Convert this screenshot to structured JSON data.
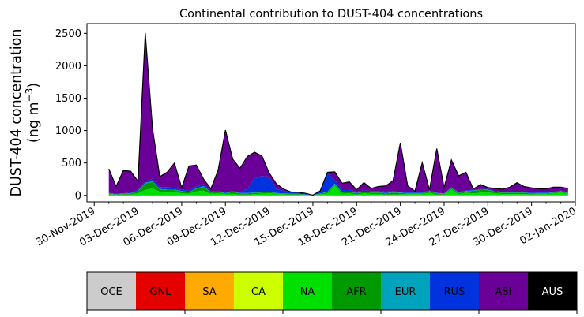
{
  "chart_data": {
    "type": "area",
    "stacked": true,
    "title": "Continental contribution to DUST-404 concentrations",
    "ylabel_line1": "DUST-404 concentration",
    "ylabel_line2_prefix": "(ng m",
    "ylabel_line2_sup": "−3",
    "ylabel_line2_suffix": ")",
    "xlabel": "",
    "ylim": [
      -100,
      2650
    ],
    "xlim_days": [
      -0.5,
      33.0
    ],
    "yticks": [
      0,
      500,
      1000,
      1500,
      2000,
      2500
    ],
    "xticks": [
      {
        "day": 0,
        "label": "30-Nov-2019"
      },
      {
        "day": 3,
        "label": "03-Dec-2019"
      },
      {
        "day": 6,
        "label": "06-Dec-2019"
      },
      {
        "day": 9,
        "label": "09-Dec-2019"
      },
      {
        "day": 12,
        "label": "12-Dec-2019"
      },
      {
        "day": 15,
        "label": "15-Dec-2019"
      },
      {
        "day": 18,
        "label": "18-Dec-2019"
      },
      {
        "day": 21,
        "label": "21-Dec-2019"
      },
      {
        "day": 24,
        "label": "24-Dec-2019"
      },
      {
        "day": 27,
        "label": "27-Dec-2019"
      },
      {
        "day": 30,
        "label": "30-Dec-2019"
      },
      {
        "day": 33,
        "label": "02-Jan-2020"
      }
    ],
    "x": [
      1.0,
      1.5,
      2.0,
      2.5,
      3.0,
      3.5,
      4.0,
      4.5,
      5.0,
      5.5,
      6.0,
      6.5,
      7.0,
      7.5,
      8.0,
      8.5,
      9.0,
      9.5,
      10.0,
      10.5,
      11.0,
      11.5,
      12.0,
      12.5,
      13.0,
      13.5,
      14.0,
      14.5,
      15.0,
      15.5,
      16.0,
      16.5,
      17.0,
      17.5,
      18.0,
      18.5,
      19.0,
      19.5,
      20.0,
      20.5,
      21.0,
      21.5,
      22.0,
      22.5,
      23.0,
      23.5,
      24.0,
      24.5,
      25.0,
      25.5,
      26.0,
      26.5,
      27.0,
      27.5,
      28.0,
      28.5,
      29.0,
      29.5,
      30.0,
      30.5,
      31.0,
      31.5,
      32.0,
      32.5
    ],
    "series": [
      {
        "name": "GNL",
        "color": "#e50000",
        "values": [
          5,
          3,
          3,
          3,
          3,
          5,
          8,
          4,
          3,
          3,
          3,
          2,
          3,
          3,
          3,
          2,
          2,
          3,
          3,
          3,
          5,
          5,
          3,
          3,
          2,
          2,
          2,
          1,
          1,
          0,
          1,
          3,
          3,
          3,
          1,
          3,
          2,
          2,
          2,
          2,
          2,
          2,
          1,
          1,
          1,
          1,
          2,
          1,
          2,
          2,
          2,
          2,
          2,
          1,
          1,
          1,
          1,
          1,
          1,
          1,
          1,
          1,
          2,
          2
        ]
      },
      {
        "name": "NA",
        "color": "#00e000",
        "values": [
          10,
          5,
          10,
          10,
          30,
          80,
          100,
          50,
          40,
          50,
          30,
          25,
          60,
          70,
          20,
          30,
          20,
          20,
          10,
          10,
          15,
          20,
          30,
          20,
          15,
          10,
          8,
          5,
          0,
          15,
          30,
          150,
          20,
          30,
          10,
          30,
          20,
          20,
          10,
          10,
          15,
          20,
          20,
          20,
          40,
          10,
          10,
          90,
          15,
          40,
          30,
          40,
          45,
          30,
          20,
          20,
          20,
          20,
          15,
          20,
          20,
          30,
          45,
          20
        ]
      },
      {
        "name": "AFR",
        "color": "#009900",
        "values": [
          10,
          5,
          10,
          15,
          30,
          100,
          100,
          40,
          40,
          30,
          30,
          20,
          40,
          60,
          20,
          20,
          10,
          30,
          20,
          20,
          20,
          20,
          20,
          10,
          10,
          10,
          10,
          5,
          2,
          10,
          20,
          20,
          20,
          20,
          20,
          20,
          20,
          20,
          20,
          30,
          20,
          10,
          10,
          10,
          20,
          20,
          10,
          20,
          20,
          20,
          40,
          40,
          40,
          20,
          20,
          20,
          20,
          20,
          10,
          10,
          10,
          10,
          15,
          10
        ]
      },
      {
        "name": "EUR",
        "color": "#00a3bb",
        "values": [
          5,
          5,
          5,
          5,
          5,
          10,
          10,
          5,
          5,
          5,
          5,
          5,
          5,
          10,
          5,
          5,
          5,
          5,
          5,
          5,
          5,
          5,
          5,
          5,
          5,
          5,
          5,
          5,
          2,
          5,
          5,
          10,
          5,
          5,
          5,
          5,
          5,
          5,
          5,
          5,
          5,
          5,
          5,
          5,
          5,
          5,
          5,
          5,
          5,
          5,
          5,
          5,
          5,
          5,
          5,
          5,
          5,
          5,
          5,
          5,
          5,
          5,
          5,
          5
        ]
      },
      {
        "name": "RUS",
        "color": "#0033dd",
        "values": [
          10,
          5,
          5,
          10,
          20,
          20,
          40,
          30,
          40,
          20,
          20,
          20,
          30,
          30,
          10,
          10,
          10,
          10,
          10,
          60,
          220,
          250,
          230,
          60,
          40,
          20,
          20,
          10,
          0,
          30,
          290,
          50,
          40,
          30,
          20,
          20,
          20,
          20,
          20,
          20,
          10,
          10,
          10,
          10,
          10,
          5,
          5,
          10,
          10,
          10,
          10,
          10,
          10,
          10,
          10,
          10,
          10,
          10,
          10,
          10,
          10,
          10,
          10,
          10
        ]
      },
      {
        "name": "ASI",
        "color": "#6b0099",
        "values": [
          370,
          115,
          350,
          330,
          130,
          2290,
          770,
          160,
          230,
          390,
          30,
          380,
          330,
          80,
          45,
          320,
          960,
          490,
          370,
          500,
          400,
          310,
          60,
          80,
          25,
          5,
          5,
          5,
          0,
          10,
          10,
          130,
          100,
          120,
          30,
          120,
          40,
          70,
          90,
          160,
          760,
          100,
          20,
          460,
          10,
          680,
          90,
          420,
          250,
          280,
          10,
          70,
          20,
          40,
          40,
          70,
          140,
          80,
          75,
          55,
          55,
          70,
          50,
          60
        ]
      },
      {
        "name": "AUS",
        "color": "#000000",
        "values": [
          0,
          0,
          0,
          0,
          0,
          0,
          0,
          0,
          0,
          0,
          0,
          0,
          0,
          0,
          0,
          0,
          0,
          0,
          0,
          0,
          0,
          0,
          0,
          0,
          0,
          0,
          0,
          0,
          0,
          0,
          0,
          0,
          0,
          0,
          0,
          0,
          0,
          0,
          0,
          0,
          0,
          0,
          0,
          0,
          0,
          0,
          0,
          0,
          0,
          0,
          0,
          0,
          0,
          0,
          0,
          0,
          0,
          0,
          0,
          0,
          0,
          0,
          0,
          0
        ]
      }
    ],
    "colorbar": [
      {
        "label": "OCE",
        "color": "#cccccc",
        "text_color": "#000000"
      },
      {
        "label": "GNL",
        "color": "#e50000",
        "text_color": "#000000"
      },
      {
        "label": "SA",
        "color": "#ffaa00",
        "text_color": "#000000"
      },
      {
        "label": "CA",
        "color": "#ccff00",
        "text_color": "#000000"
      },
      {
        "label": "NA",
        "color": "#00e000",
        "text_color": "#000000"
      },
      {
        "label": "AFR",
        "color": "#009900",
        "text_color": "#000000"
      },
      {
        "label": "EUR",
        "color": "#00a3bb",
        "text_color": "#000000"
      },
      {
        "label": "RUS",
        "color": "#0033dd",
        "text_color": "#000000"
      },
      {
        "label": "ASI",
        "color": "#6b0099",
        "text_color": "#000000"
      },
      {
        "label": "AUS",
        "color": "#000000",
        "text_color": "#ffffff"
      }
    ],
    "grid": false,
    "legend": "colorbar-bottom"
  }
}
